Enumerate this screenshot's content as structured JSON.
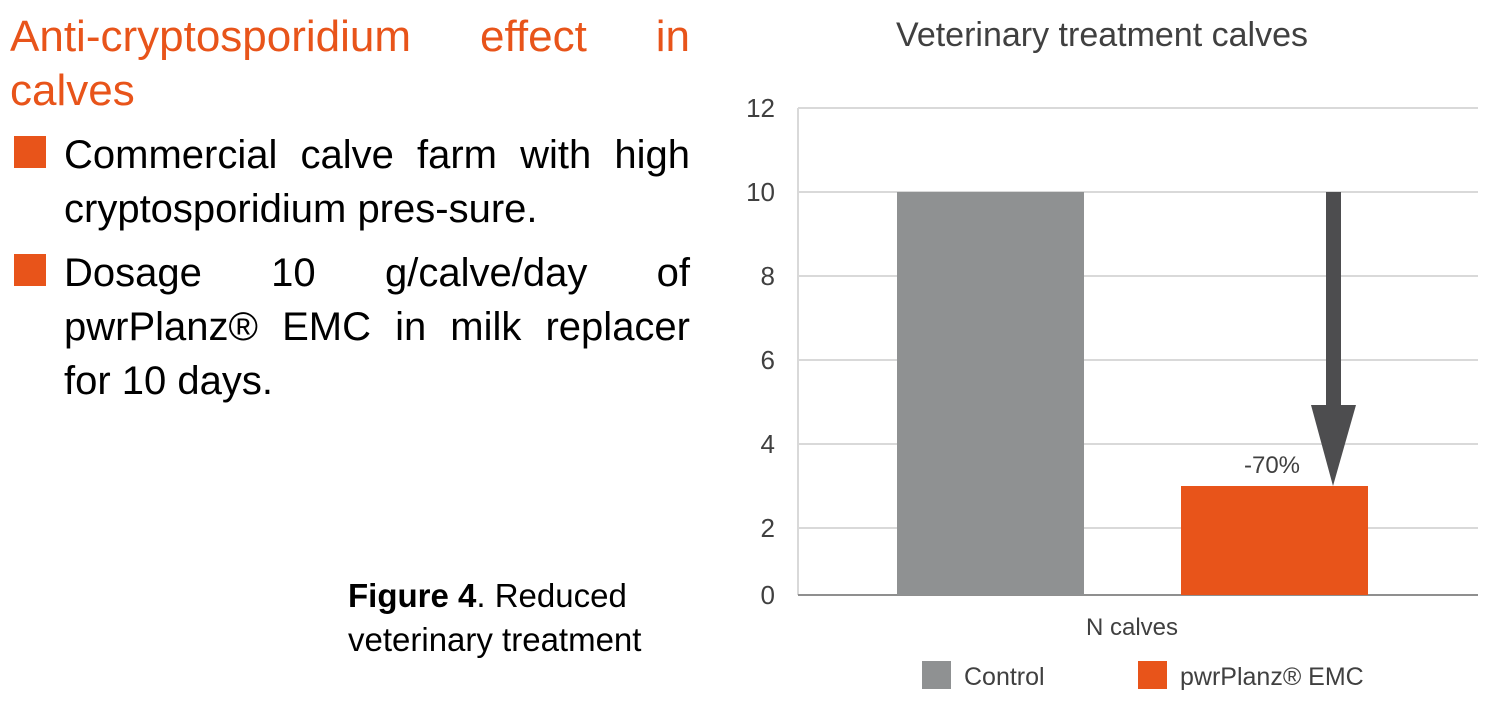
{
  "left": {
    "heading": "Anti-cryptosporidium effect in calves",
    "bullets": [
      "Commercial calve farm with high cryptosporidium pres-sure.",
      "Dosage 10 g/calve/day of pwrPlanz® EMC in milk replacer for 10 days."
    ],
    "caption_bold": "Figure 4",
    "caption_rest": ". Reduced veterinary treatment"
  },
  "colors": {
    "accent": "#e8541a",
    "control": "#8f9192",
    "arrow": "#4d4d4f"
  },
  "chart_data": {
    "type": "bar",
    "title": "Veterinary treatment calves",
    "categories": [
      "N calves"
    ],
    "series": [
      {
        "name": "Control",
        "values": [
          10
        ]
      },
      {
        "name": "pwrPlanz® EMC",
        "values": [
          3
        ]
      }
    ],
    "yticks": [
      "0",
      "2",
      "4",
      "6",
      "8",
      "10",
      "12"
    ],
    "ylim": [
      0,
      12
    ],
    "annotation": "-70%",
    "xlabel": "N calves",
    "legend": "bottom",
    "grid": true
  }
}
